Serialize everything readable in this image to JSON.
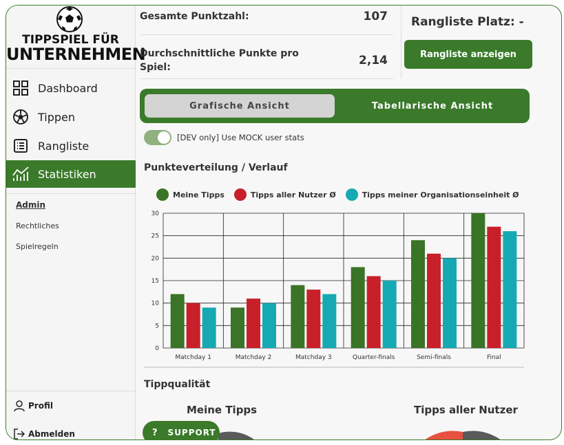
{
  "brand": {
    "line1": "TIPPSPIEL FÜR",
    "line2": "UNTERNEHMEN"
  },
  "sidebar": {
    "items": [
      {
        "label": "Dashboard",
        "icon": "dashboard-icon",
        "active": false
      },
      {
        "label": "Tippen",
        "icon": "soccer-ball-icon",
        "active": false
      },
      {
        "label": "Rangliste",
        "icon": "list-icon",
        "active": false
      },
      {
        "label": "Statistiken",
        "icon": "chart-icon",
        "active": true
      }
    ],
    "sub_items": [
      "Admin",
      "Rechtliches",
      "Spielregeln"
    ],
    "profile_label": "Profil",
    "logout_label": "Abmelden"
  },
  "stats": {
    "total_label": "Gesamte Punktzahl:",
    "total_value": "107",
    "avg_label_line1": "Durchschnittliche Punkte pro",
    "avg_label_line2": "Spiel:",
    "avg_value": "2,14",
    "rank_title": "Rangliste Platz: -",
    "rank_button": "Rangliste anzeigen"
  },
  "view_toggle": {
    "left": "Grafische Ansicht",
    "right": "Tabellarische Ansicht"
  },
  "dev_switch": {
    "label": "[DEV only] Use MOCK user stats",
    "on": true
  },
  "sections": {
    "distribution": "Punkteverteilung / Verlauf",
    "quality": "Tippqualität"
  },
  "pies": {
    "left_title": "Meine Tipps",
    "right_title": "Tipps aller Nutzer"
  },
  "support_label": "SUPPORT",
  "colors": {
    "primary": "#3a7a2a",
    "series_green": "#3a7427",
    "series_red": "#c8202a",
    "series_teal": "#16a9b3"
  },
  "chart_data": {
    "type": "bar",
    "categories": [
      "Matchday 1",
      "Matchday 2",
      "Matchday 3",
      "Quarter-finals",
      "Semi-finals",
      "Final"
    ],
    "series": [
      {
        "name": "Meine Tipps",
        "values": [
          12,
          9,
          14,
          18,
          24,
          30
        ],
        "color": "#3a7427"
      },
      {
        "name": "Tipps aller Nutzer Ø",
        "values": [
          10,
          11,
          13,
          16,
          21,
          27
        ],
        "color": "#c8202a"
      },
      {
        "name": "Tipps meiner Organisationseinheit Ø",
        "values": [
          9,
          10,
          12,
          15,
          20,
          26
        ],
        "color": "#16a9b3"
      }
    ],
    "ylim": [
      0,
      30
    ],
    "yticks": [
      "0",
      "5",
      "10",
      "15",
      "20",
      "25",
      "30"
    ],
    "grid": true,
    "legend": "top"
  }
}
